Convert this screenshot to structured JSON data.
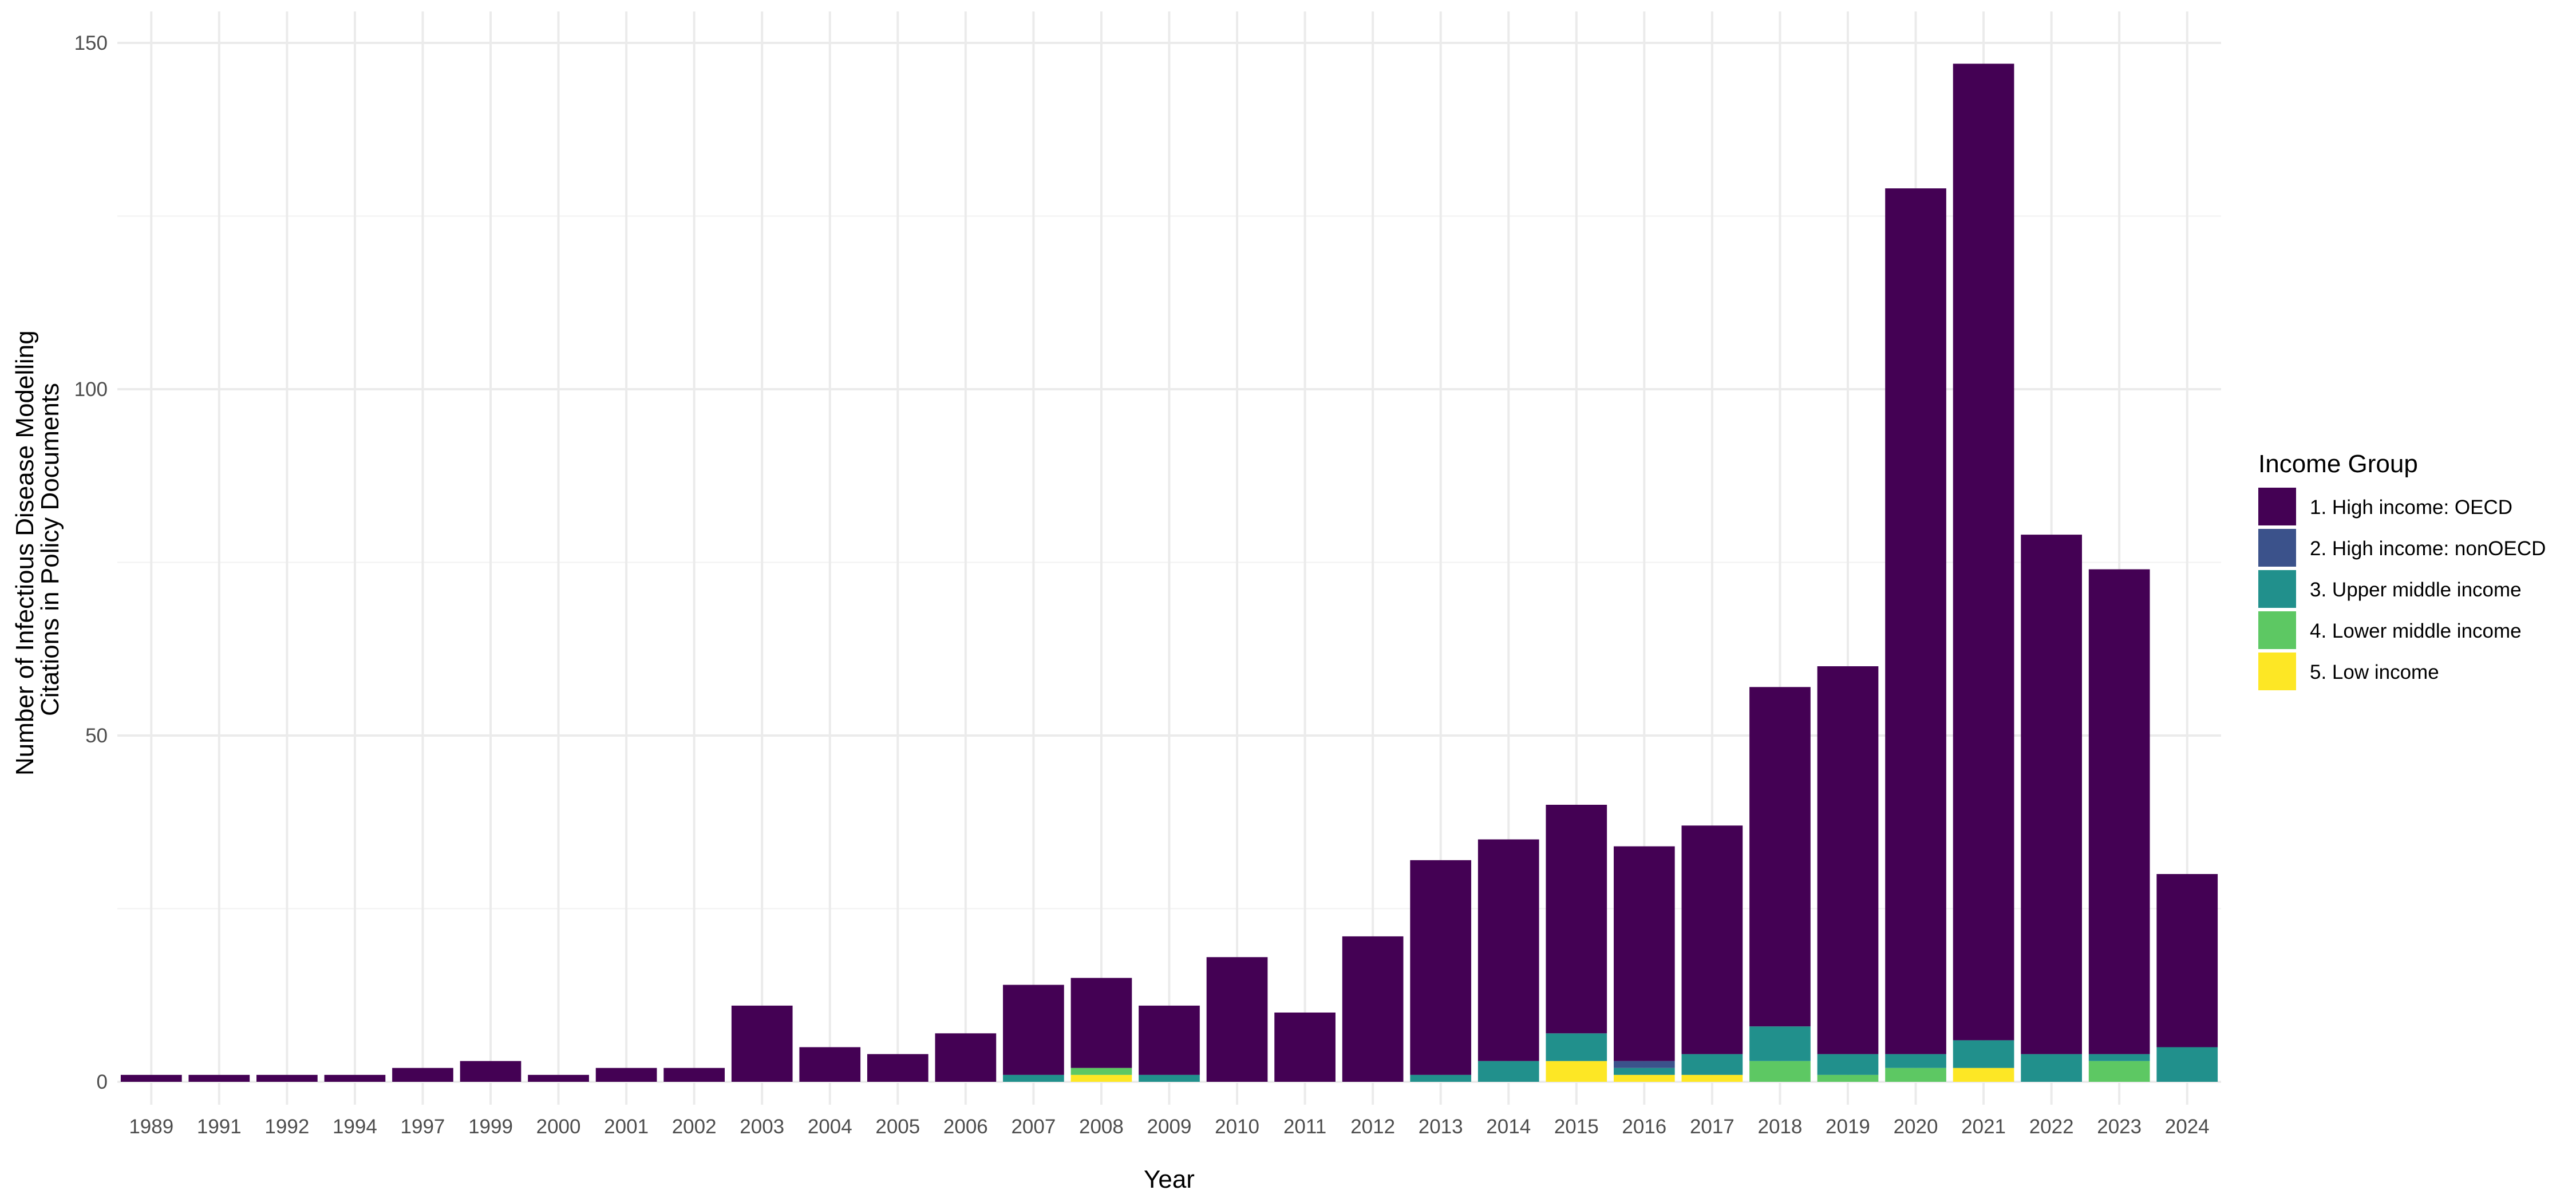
{
  "chart_data": {
    "type": "bar",
    "stacked": true,
    "title": "",
    "xlabel": "Year",
    "ylabel": [
      "Number of Infectious Disease Modelling",
      "Citations in Policy Documents"
    ],
    "ylim": [
      -7,
      151
    ],
    "yticks": [
      0,
      50,
      100,
      150
    ],
    "grid": true,
    "legend_placement": "right",
    "legend_title": "Income Group",
    "categories": [
      "1989",
      "1991",
      "1992",
      "1994",
      "1997",
      "1999",
      "2000",
      "2001",
      "2002",
      "2003",
      "2004",
      "2005",
      "2006",
      "2007",
      "2008",
      "2009",
      "2010",
      "2011",
      "2012",
      "2013",
      "2014",
      "2015",
      "2016",
      "2017",
      "2018",
      "2019",
      "2020",
      "2021",
      "2022",
      "2023",
      "2024"
    ],
    "series": [
      {
        "name": "5. Low income",
        "color": "#FDE725",
        "values": [
          0,
          0,
          0,
          0,
          0,
          0,
          0,
          0,
          0,
          0,
          0,
          0,
          0,
          0,
          1,
          0,
          0,
          0,
          0,
          0,
          0,
          3,
          1,
          1,
          0,
          0,
          0,
          2,
          0,
          0,
          0
        ]
      },
      {
        "name": "4. Lower middle income",
        "color": "#5DC863",
        "values": [
          0,
          0,
          0,
          0,
          0,
          0,
          0,
          0,
          0,
          0,
          0,
          0,
          0,
          0,
          1,
          0,
          0,
          0,
          0,
          0,
          0,
          0,
          0,
          0,
          3,
          1,
          2,
          0,
          0,
          3,
          0
        ]
      },
      {
        "name": "3. Upper middle income",
        "color": "#21908C",
        "values": [
          0,
          0,
          0,
          0,
          0,
          0,
          0,
          0,
          0,
          0,
          0,
          0,
          0,
          1,
          0,
          1,
          0,
          0,
          0,
          1,
          3,
          4,
          1,
          3,
          5,
          3,
          2,
          4,
          4,
          1,
          5
        ]
      },
      {
        "name": "2. High income: nonOECD",
        "color": "#3B528B",
        "values": [
          0,
          0,
          0,
          0,
          0,
          0,
          0,
          0,
          0,
          0,
          0,
          0,
          0,
          0,
          0,
          0,
          0,
          0,
          0,
          0,
          0,
          0,
          1,
          0,
          0,
          0,
          0,
          0,
          0,
          0,
          0
        ]
      },
      {
        "name": "1. High income: OECD",
        "color": "#440154",
        "values": [
          1,
          1,
          1,
          1,
          2,
          3,
          1,
          2,
          2,
          11,
          5,
          4,
          7,
          13,
          13,
          10,
          18,
          10,
          21,
          31,
          32,
          33,
          31,
          33,
          49,
          56,
          125,
          141,
          75,
          70,
          25
        ]
      }
    ],
    "legend_order": [
      "1. High income: OECD",
      "2. High income: nonOECD",
      "3. Upper middle income",
      "4. Lower middle income",
      "5. Low income"
    ]
  }
}
